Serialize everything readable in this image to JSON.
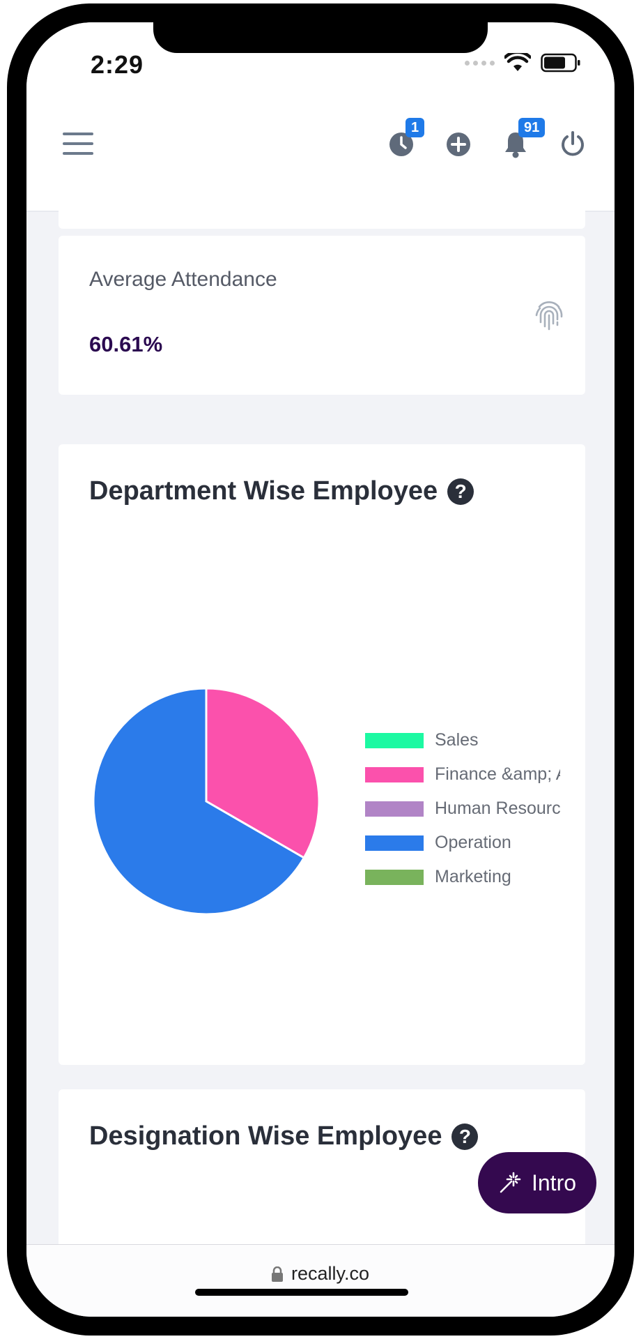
{
  "status_bar": {
    "time": "2:29"
  },
  "header": {
    "timer_badge": "1",
    "notification_badge": "91"
  },
  "attendance_card": {
    "label": "Average Attendance",
    "value": "60.61%"
  },
  "department_card": {
    "title": "Department Wise Employee",
    "help_symbol": "?"
  },
  "designation_card": {
    "title": "Designation Wise Employee",
    "help_symbol": "?"
  },
  "chart_data": {
    "type": "pie",
    "title": "Department Wise Employee",
    "legend_position": "right",
    "categories": [
      "Sales",
      "Finance &amp; Ac",
      "Human Resource",
      "Operation",
      "Marketing"
    ],
    "values": [
      0,
      1,
      0,
      2,
      0
    ],
    "colors": [
      "#1cf9a2",
      "#fb51ac",
      "#b184c6",
      "#2b7bea",
      "#79b35c"
    ]
  },
  "intro_button": {
    "label": "Intro"
  },
  "browser": {
    "url": "recally.co"
  }
}
